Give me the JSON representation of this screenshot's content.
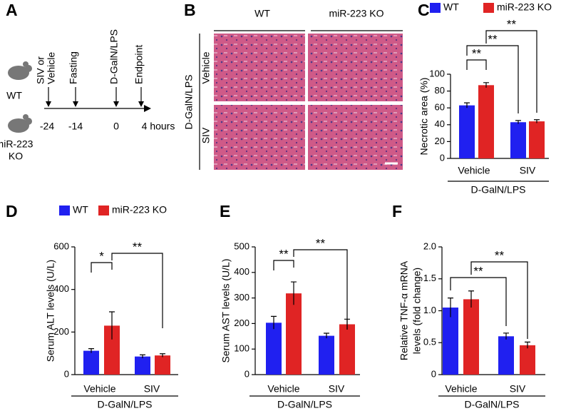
{
  "panel_a": {
    "letter": "A",
    "strains": [
      [
        "WT"
      ],
      [
        "miR-223",
        "KO"
      ]
    ],
    "events": [
      {
        "label": [
          "SIV or",
          "Vehicle"
        ],
        "time": "-24"
      },
      {
        "label": [
          "Fasting"
        ],
        "time": "-14"
      },
      {
        "label": [
          "D-GalN/LPS"
        ],
        "time": "0"
      },
      {
        "label": [
          "Endpoint"
        ],
        "time": "4 hours"
      }
    ]
  },
  "panel_b": {
    "letter": "B",
    "columns": [
      "WT",
      "miR-223 KO"
    ],
    "treatment": "D-GalN/LPS",
    "rows": [
      "Vehicle",
      "SIV"
    ]
  },
  "chart_data": [
    {
      "type": "bar",
      "panel": "C",
      "ylabel": [
        "Necrotic area (%)"
      ],
      "xlabel": "D-GalN/LPS",
      "categories": [
        "Vehicle",
        "SIV"
      ],
      "ylim": [
        0,
        100
      ],
      "yticks": [
        0,
        20,
        40,
        60,
        80,
        100
      ],
      "legend": true,
      "series": [
        {
          "name": "WT",
          "color": "#2020f0",
          "values": [
            63,
            43
          ],
          "errors": [
            3,
            2
          ]
        },
        {
          "name": "miR-223 KO",
          "color": "#e02424",
          "values": [
            87,
            44
          ],
          "errors": [
            3,
            2
          ]
        }
      ],
      "brackets": [
        "**",
        "**",
        "**"
      ]
    },
    {
      "type": "bar",
      "panel": "D",
      "ylabel": [
        "Serum ALT levels (U/L)"
      ],
      "xlabel": "D-GalN/LPS",
      "categories": [
        "Vehicle",
        "SIV"
      ],
      "ylim": [
        0,
        600
      ],
      "yticks": [
        0,
        200,
        400,
        600
      ],
      "legend": true,
      "series": [
        {
          "name": "WT",
          "color": "#2020f0",
          "values": [
            112,
            85
          ],
          "errors": [
            10,
            8
          ]
        },
        {
          "name": "miR-223 KO",
          "color": "#e02424",
          "values": [
            230,
            90
          ],
          "errors": [
            65,
            8
          ]
        }
      ],
      "brackets": [
        "*",
        "**"
      ]
    },
    {
      "type": "bar",
      "panel": "E",
      "ylabel": [
        "Serum AST levels (U/L)"
      ],
      "xlabel": "D-GalN/LPS",
      "categories": [
        "Vehicle",
        "SIV"
      ],
      "ylim": [
        0,
        500
      ],
      "yticks": [
        0,
        100,
        200,
        300,
        400,
        500
      ],
      "legend": false,
      "series": [
        {
          "color": "#2020f0",
          "values": [
            203,
            152
          ],
          "errors": [
            25,
            10
          ]
        },
        {
          "color": "#e02424",
          "values": [
            318,
            197
          ],
          "errors": [
            45,
            20
          ]
        }
      ],
      "brackets": [
        "**",
        "**"
      ]
    },
    {
      "type": "bar",
      "panel": "F",
      "ylabel": [
        "Relative TNF-α mRNA",
        "levels (fold change)"
      ],
      "xlabel": "D-GalN/LPS",
      "categories": [
        "Vehicle",
        "SIV"
      ],
      "ylim": [
        0,
        2
      ],
      "yticks": [
        0,
        0.5,
        {
          "value": 1,
          "label": "1.0"
        },
        1.5,
        {
          "value": 2,
          "label": "2.0"
        }
      ],
      "legend": false,
      "series": [
        {
          "color": "#2020f0",
          "values": [
            1.05,
            0.6
          ],
          "errors": [
            0.15,
            0.05
          ]
        },
        {
          "color": "#e02424",
          "values": [
            1.18,
            0.46
          ],
          "errors": [
            0.13,
            0.05
          ]
        }
      ],
      "brackets": [
        "**",
        "**"
      ]
    }
  ]
}
